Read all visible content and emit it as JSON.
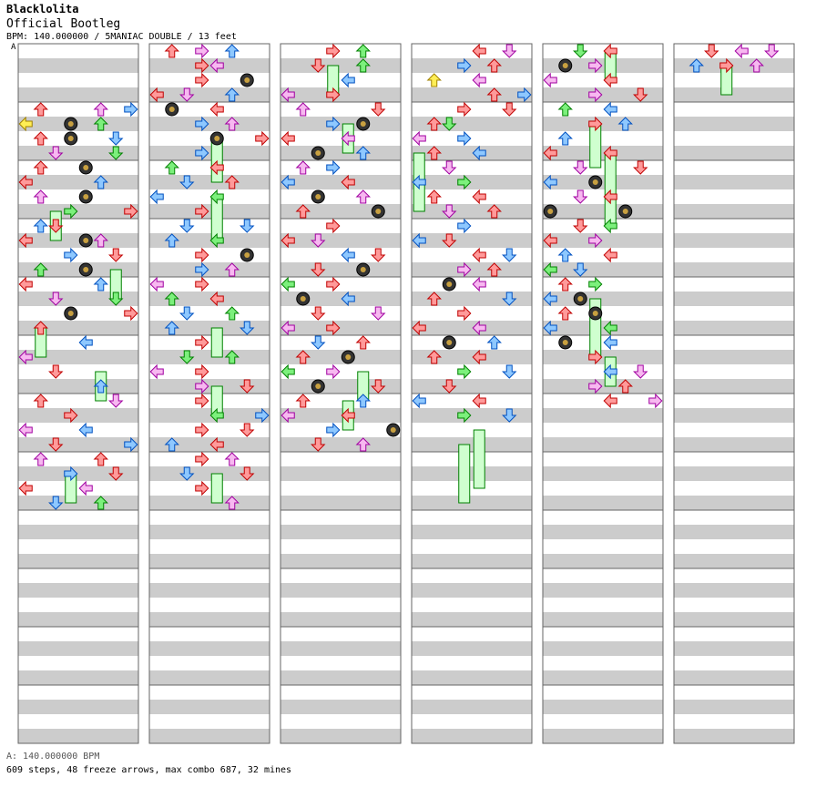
{
  "song": {
    "title": "Blacklolita",
    "subtitle": "Official Bootleg",
    "info": "BPM: 140.000000 / 5MANIAC DOUBLE / 13 feet",
    "bpm_marker": "A"
  },
  "footer": {
    "bpm_legend": "A: 140.000000 BPM",
    "stats": "609 steps, 48 freeze arrows, max combo 687, 32 mines"
  },
  "colors": {
    "red": "#ff9a9a",
    "red_stroke": "#c00000",
    "pink": "#f7b8f0",
    "pink_stroke": "#a000a0",
    "blue": "#8ec8ff",
    "blue_stroke": "#0050c0",
    "green": "#7cf07c",
    "green_stroke": "#008000",
    "yellow": "#ffee55",
    "band": "#cccccc"
  },
  "chart": {
    "columns": 6,
    "measures_per_column": 12,
    "lanes": 8,
    "first_column_start_measure": 4,
    "notes": [
      [
        0,
        4,
        1,
        "r"
      ],
      [
        0,
        4,
        5,
        "p"
      ],
      [
        0,
        4,
        7,
        "b"
      ],
      [
        0,
        5,
        0,
        "y"
      ],
      [
        0,
        5,
        5,
        "g"
      ],
      [
        0,
        5,
        3,
        "m"
      ],
      [
        0,
        6,
        1,
        "r"
      ],
      [
        0,
        6,
        6,
        "b"
      ],
      [
        0,
        6,
        3,
        "m"
      ],
      [
        0,
        7,
        2,
        "p"
      ],
      [
        0,
        7,
        6,
        "g"
      ],
      [
        0,
        8,
        1,
        "r"
      ],
      [
        0,
        8,
        4,
        "m"
      ],
      [
        0,
        9,
        0,
        "r"
      ],
      [
        0,
        9,
        5,
        "b"
      ],
      [
        0,
        10,
        1,
        "p"
      ],
      [
        0,
        10,
        4,
        "m"
      ],
      [
        0,
        11,
        3,
        "g"
      ],
      [
        0,
        11,
        7,
        "r"
      ],
      [
        0,
        12,
        1,
        "b"
      ],
      [
        0,
        12,
        2,
        "r"
      ],
      [
        0,
        13,
        0,
        "r"
      ],
      [
        0,
        13,
        4,
        "m"
      ],
      [
        0,
        13,
        5,
        "p"
      ],
      [
        0,
        14,
        3,
        "b"
      ],
      [
        0,
        14,
        6,
        "r"
      ],
      [
        0,
        15,
        1,
        "g"
      ],
      [
        0,
        15,
        4,
        "m"
      ],
      [
        0,
        16,
        0,
        "r"
      ],
      [
        0,
        16,
        5,
        "b"
      ],
      [
        0,
        17,
        2,
        "p"
      ],
      [
        0,
        17,
        6,
        "g"
      ],
      [
        0,
        18,
        3,
        "m"
      ],
      [
        0,
        18,
        7,
        "r"
      ],
      [
        0,
        19,
        1,
        "r"
      ],
      [
        0,
        20,
        4,
        "b"
      ],
      [
        0,
        21,
        0,
        "p"
      ],
      [
        0,
        22,
        2,
        "r"
      ],
      [
        0,
        23,
        5,
        "b"
      ],
      [
        0,
        24,
        1,
        "r"
      ],
      [
        0,
        24,
        6,
        "p"
      ],
      [
        0,
        25,
        3,
        "r"
      ],
      [
        0,
        26,
        0,
        "p"
      ],
      [
        0,
        26,
        4,
        "b"
      ],
      [
        0,
        27,
        2,
        "r"
      ],
      [
        0,
        27,
        7,
        "b"
      ],
      [
        0,
        28,
        1,
        "p"
      ],
      [
        0,
        28,
        5,
        "r"
      ],
      [
        0,
        29,
        3,
        "b"
      ],
      [
        0,
        29,
        6,
        "r"
      ],
      [
        0,
        30,
        0,
        "r"
      ],
      [
        0,
        30,
        4,
        "p"
      ],
      [
        0,
        31,
        2,
        "b"
      ],
      [
        0,
        31,
        5,
        "g"
      ],
      [
        1,
        0,
        1,
        "r"
      ],
      [
        1,
        0,
        3,
        "p"
      ],
      [
        1,
        0,
        5,
        "b"
      ],
      [
        1,
        1,
        3,
        "r"
      ],
      [
        1,
        1,
        4,
        "p"
      ],
      [
        1,
        2,
        3,
        "r"
      ],
      [
        1,
        2,
        6,
        "m"
      ],
      [
        1,
        3,
        0,
        "r"
      ],
      [
        1,
        3,
        2,
        "p"
      ],
      [
        1,
        3,
        5,
        "b"
      ],
      [
        1,
        4,
        1,
        "m"
      ],
      [
        1,
        4,
        4,
        "r"
      ],
      [
        1,
        5,
        3,
        "b"
      ],
      [
        1,
        5,
        5,
        "p"
      ],
      [
        1,
        6,
        4,
        "m"
      ],
      [
        1,
        6,
        7,
        "r"
      ],
      [
        1,
        7,
        3,
        "b"
      ],
      [
        1,
        8,
        1,
        "g"
      ],
      [
        1,
        8,
        4,
        "r"
      ],
      [
        1,
        9,
        2,
        "b"
      ],
      [
        1,
        9,
        5,
        "r"
      ],
      [
        1,
        10,
        0,
        "b"
      ],
      [
        1,
        10,
        4,
        "g"
      ],
      [
        1,
        11,
        3,
        "r"
      ],
      [
        1,
        12,
        2,
        "b"
      ],
      [
        1,
        12,
        6,
        "b"
      ],
      [
        1,
        13,
        1,
        "b"
      ],
      [
        1,
        13,
        4,
        "g"
      ],
      [
        1,
        14,
        3,
        "r"
      ],
      [
        1,
        14,
        6,
        "m"
      ],
      [
        1,
        15,
        3,
        "b"
      ],
      [
        1,
        15,
        5,
        "p"
      ],
      [
        1,
        16,
        0,
        "p"
      ],
      [
        1,
        16,
        3,
        "r"
      ],
      [
        1,
        17,
        1,
        "g"
      ],
      [
        1,
        17,
        4,
        "r"
      ],
      [
        1,
        18,
        2,
        "b"
      ],
      [
        1,
        18,
        5,
        "g"
      ],
      [
        1,
        19,
        1,
        "b"
      ],
      [
        1,
        19,
        6,
        "b"
      ],
      [
        1,
        20,
        3,
        "r"
      ],
      [
        1,
        21,
        2,
        "g"
      ],
      [
        1,
        21,
        5,
        "g"
      ],
      [
        1,
        22,
        0,
        "p"
      ],
      [
        1,
        22,
        3,
        "r"
      ],
      [
        1,
        23,
        3,
        "p"
      ],
      [
        1,
        23,
        6,
        "r"
      ],
      [
        1,
        24,
        3,
        "r"
      ],
      [
        1,
        25,
        4,
        "g"
      ],
      [
        1,
        25,
        7,
        "b"
      ],
      [
        1,
        26,
        3,
        "r"
      ],
      [
        1,
        26,
        6,
        "r"
      ],
      [
        1,
        27,
        1,
        "b"
      ],
      [
        1,
        27,
        4,
        "r"
      ],
      [
        1,
        28,
        3,
        "r"
      ],
      [
        1,
        28,
        5,
        "p"
      ],
      [
        1,
        29,
        2,
        "b"
      ],
      [
        1,
        29,
        6,
        "r"
      ],
      [
        1,
        30,
        3,
        "r"
      ],
      [
        1,
        31,
        5,
        "p"
      ],
      [
        2,
        0,
        3,
        "r"
      ],
      [
        2,
        0,
        5,
        "g"
      ],
      [
        2,
        1,
        2,
        "r"
      ],
      [
        2,
        1,
        5,
        "g"
      ],
      [
        2,
        2,
        4,
        "b"
      ],
      [
        2,
        3,
        0,
        "p"
      ],
      [
        2,
        3,
        3,
        "r"
      ],
      [
        2,
        4,
        1,
        "p"
      ],
      [
        2,
        4,
        6,
        "r"
      ],
      [
        2,
        5,
        3,
        "b"
      ],
      [
        2,
        5,
        5,
        "m"
      ],
      [
        2,
        6,
        0,
        "r"
      ],
      [
        2,
        6,
        4,
        "p"
      ],
      [
        2,
        7,
        2,
        "m"
      ],
      [
        2,
        7,
        5,
        "b"
      ],
      [
        2,
        8,
        1,
        "p"
      ],
      [
        2,
        8,
        3,
        "b"
      ],
      [
        2,
        9,
        0,
        "b"
      ],
      [
        2,
        9,
        4,
        "r"
      ],
      [
        2,
        10,
        2,
        "m"
      ],
      [
        2,
        10,
        5,
        "p"
      ],
      [
        2,
        11,
        1,
        "r"
      ],
      [
        2,
        11,
        6,
        "m"
      ],
      [
        2,
        12,
        3,
        "r"
      ],
      [
        2,
        13,
        0,
        "r"
      ],
      [
        2,
        13,
        2,
        "p"
      ],
      [
        2,
        14,
        4,
        "b"
      ],
      [
        2,
        14,
        6,
        "r"
      ],
      [
        2,
        15,
        2,
        "r"
      ],
      [
        2,
        15,
        5,
        "m"
      ],
      [
        2,
        16,
        0,
        "g"
      ],
      [
        2,
        16,
        3,
        "r"
      ],
      [
        2,
        17,
        1,
        "m"
      ],
      [
        2,
        17,
        4,
        "b"
      ],
      [
        2,
        18,
        2,
        "r"
      ],
      [
        2,
        18,
        6,
        "p"
      ],
      [
        2,
        19,
        0,
        "p"
      ],
      [
        2,
        19,
        3,
        "r"
      ],
      [
        2,
        20,
        2,
        "b"
      ],
      [
        2,
        20,
        5,
        "r"
      ],
      [
        2,
        21,
        1,
        "r"
      ],
      [
        2,
        21,
        4,
        "m"
      ],
      [
        2,
        22,
        0,
        "g"
      ],
      [
        2,
        22,
        3,
        "p"
      ],
      [
        2,
        23,
        2,
        "m"
      ],
      [
        2,
        23,
        6,
        "r"
      ],
      [
        2,
        24,
        1,
        "r"
      ],
      [
        2,
        24,
        5,
        "b"
      ],
      [
        2,
        25,
        0,
        "p"
      ],
      [
        2,
        25,
        4,
        "r"
      ],
      [
        2,
        26,
        3,
        "b"
      ],
      [
        2,
        26,
        7,
        "m"
      ],
      [
        2,
        27,
        2,
        "r"
      ],
      [
        2,
        27,
        5,
        "p"
      ],
      [
        3,
        0,
        4,
        "r"
      ],
      [
        3,
        0,
        6,
        "p"
      ],
      [
        3,
        1,
        3,
        "b"
      ],
      [
        3,
        1,
        5,
        "r"
      ],
      [
        3,
        2,
        1,
        "y"
      ],
      [
        3,
        2,
        4,
        "p"
      ],
      [
        3,
        3,
        5,
        "r"
      ],
      [
        3,
        3,
        7,
        "b"
      ],
      [
        3,
        4,
        3,
        "r"
      ],
      [
        3,
        4,
        6,
        "r"
      ],
      [
        3,
        5,
        1,
        "r"
      ],
      [
        3,
        5,
        2,
        "g"
      ],
      [
        3,
        6,
        0,
        "p"
      ],
      [
        3,
        6,
        3,
        "b"
      ],
      [
        3,
        7,
        1,
        "r"
      ],
      [
        3,
        7,
        4,
        "b"
      ],
      [
        3,
        8,
        2,
        "p"
      ],
      [
        3,
        9,
        0,
        "b"
      ],
      [
        3,
        9,
        3,
        "g"
      ],
      [
        3,
        10,
        1,
        "r"
      ],
      [
        3,
        10,
        4,
        "r"
      ],
      [
        3,
        11,
        2,
        "p"
      ],
      [
        3,
        11,
        5,
        "r"
      ],
      [
        3,
        12,
        3,
        "b"
      ],
      [
        3,
        13,
        0,
        "b"
      ],
      [
        3,
        13,
        2,
        "r"
      ],
      [
        3,
        14,
        4,
        "r"
      ],
      [
        3,
        14,
        6,
        "b"
      ],
      [
        3,
        15,
        3,
        "p"
      ],
      [
        3,
        15,
        5,
        "r"
      ],
      [
        3,
        16,
        2,
        "m"
      ],
      [
        3,
        16,
        4,
        "p"
      ],
      [
        3,
        17,
        1,
        "r"
      ],
      [
        3,
        17,
        6,
        "b"
      ],
      [
        3,
        18,
        3,
        "r"
      ],
      [
        3,
        19,
        0,
        "r"
      ],
      [
        3,
        19,
        4,
        "p"
      ],
      [
        3,
        20,
        2,
        "m"
      ],
      [
        3,
        20,
        5,
        "b"
      ],
      [
        3,
        21,
        1,
        "r"
      ],
      [
        3,
        21,
        4,
        "r"
      ],
      [
        3,
        22,
        3,
        "g"
      ],
      [
        3,
        22,
        6,
        "b"
      ],
      [
        3,
        23,
        2,
        "r"
      ],
      [
        3,
        24,
        0,
        "b"
      ],
      [
        3,
        24,
        4,
        "r"
      ],
      [
        3,
        25,
        3,
        "g"
      ],
      [
        3,
        25,
        6,
        "b"
      ],
      [
        4,
        0,
        2,
        "g"
      ],
      [
        4,
        0,
        4,
        "r"
      ],
      [
        4,
        1,
        1,
        "m"
      ],
      [
        4,
        1,
        3,
        "p"
      ],
      [
        4,
        2,
        0,
        "p"
      ],
      [
        4,
        2,
        4,
        "r"
      ],
      [
        4,
        3,
        3,
        "p"
      ],
      [
        4,
        3,
        6,
        "r"
      ],
      [
        4,
        4,
        1,
        "g"
      ],
      [
        4,
        4,
        4,
        "b"
      ],
      [
        4,
        5,
        3,
        "r"
      ],
      [
        4,
        5,
        5,
        "b"
      ],
      [
        4,
        6,
        1,
        "b"
      ],
      [
        4,
        7,
        0,
        "r"
      ],
      [
        4,
        7,
        4,
        "r"
      ],
      [
        4,
        8,
        2,
        "p"
      ],
      [
        4,
        8,
        6,
        "r"
      ],
      [
        4,
        9,
        3,
        "m"
      ],
      [
        4,
        9,
        0,
        "b"
      ],
      [
        4,
        10,
        2,
        "p"
      ],
      [
        4,
        10,
        4,
        "r"
      ],
      [
        4,
        11,
        0,
        "m"
      ],
      [
        4,
        11,
        5,
        "m"
      ],
      [
        4,
        12,
        2,
        "r"
      ],
      [
        4,
        12,
        4,
        "g"
      ],
      [
        4,
        13,
        0,
        "r"
      ],
      [
        4,
        13,
        3,
        "p"
      ],
      [
        4,
        14,
        1,
        "b"
      ],
      [
        4,
        14,
        4,
        "r"
      ],
      [
        4,
        15,
        0,
        "g"
      ],
      [
        4,
        15,
        2,
        "b"
      ],
      [
        4,
        16,
        1,
        "r"
      ],
      [
        4,
        16,
        3,
        "g"
      ],
      [
        4,
        17,
        0,
        "b"
      ],
      [
        4,
        17,
        2,
        "m"
      ],
      [
        4,
        18,
        1,
        "r"
      ],
      [
        4,
        18,
        3,
        "m"
      ],
      [
        4,
        19,
        0,
        "b"
      ],
      [
        4,
        19,
        4,
        "g"
      ],
      [
        4,
        20,
        1,
        "m"
      ],
      [
        4,
        20,
        4,
        "b"
      ],
      [
        4,
        21,
        3,
        "r"
      ],
      [
        4,
        22,
        4,
        "b"
      ],
      [
        4,
        22,
        6,
        "p"
      ],
      [
        4,
        23,
        3,
        "p"
      ],
      [
        4,
        23,
        5,
        "r"
      ],
      [
        4,
        24,
        4,
        "r"
      ],
      [
        4,
        24,
        7,
        "p"
      ],
      [
        5,
        0,
        2,
        "r"
      ],
      [
        5,
        0,
        4,
        "p"
      ],
      [
        5,
        0,
        6,
        "p"
      ],
      [
        5,
        1,
        1,
        "b"
      ],
      [
        5,
        1,
        3,
        "r"
      ],
      [
        5,
        1,
        5,
        "p"
      ]
    ],
    "holds": [
      [
        0,
        11,
        13,
        2,
        "g"
      ],
      [
        0,
        15,
        17,
        6,
        "g"
      ],
      [
        0,
        19,
        21,
        1,
        "g"
      ],
      [
        0,
        22,
        24,
        5,
        "g"
      ],
      [
        0,
        29,
        31,
        3,
        "g"
      ],
      [
        1,
        6,
        9,
        4,
        "g"
      ],
      [
        1,
        10,
        13,
        4,
        "g"
      ],
      [
        1,
        19,
        21,
        4,
        "g"
      ],
      [
        1,
        23,
        25,
        4,
        "g"
      ],
      [
        1,
        29,
        31,
        4,
        "g"
      ],
      [
        2,
        1,
        3,
        3,
        "g"
      ],
      [
        2,
        5,
        7,
        4,
        "g"
      ],
      [
        2,
        22,
        24,
        5,
        "g"
      ],
      [
        2,
        24,
        26,
        4,
        "g"
      ],
      [
        3,
        7,
        11,
        0,
        "g"
      ],
      [
        3,
        27,
        31,
        3,
        "g"
      ],
      [
        3,
        26,
        30,
        4,
        "g"
      ],
      [
        4,
        0,
        2,
        4,
        "g"
      ],
      [
        4,
        5,
        8,
        3,
        "g"
      ],
      [
        4,
        7,
        12,
        4,
        "g"
      ],
      [
        4,
        17,
        21,
        3,
        "g"
      ],
      [
        4,
        21,
        23,
        4,
        "g"
      ],
      [
        5,
        1,
        3,
        3,
        "g"
      ]
    ]
  }
}
